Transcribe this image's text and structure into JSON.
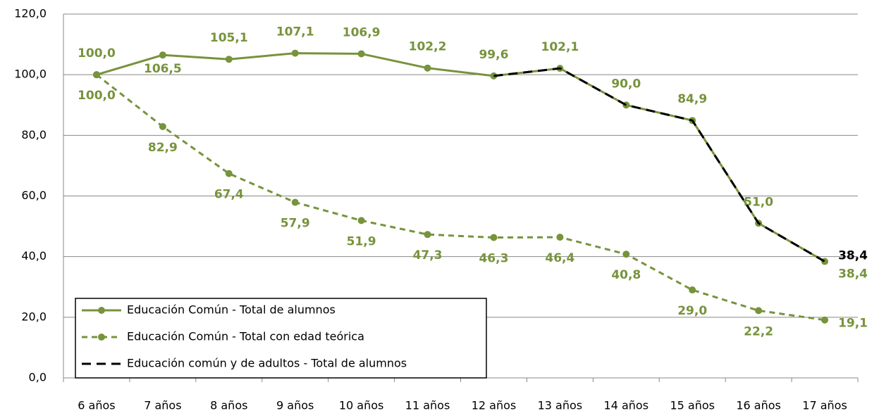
{
  "chart_data": {
    "type": "line",
    "categories": [
      "6 años",
      "7 años",
      "8 años",
      "9 años",
      "10 años",
      "11 años",
      "12 años",
      "13 años",
      "14 años",
      "15 años",
      "16 años",
      "17 años"
    ],
    "series": [
      {
        "name": "Educación Común - Total de alumnos",
        "color": "#77933c",
        "line_style": "solid",
        "marker": true,
        "values": [
          100.0,
          106.5,
          105.1,
          107.1,
          106.9,
          102.2,
          99.6,
          102.1,
          90.0,
          84.9,
          51.0,
          38.4
        ],
        "value_labels": [
          "100,0",
          "106,5",
          "105,1",
          "107,1",
          "106,9",
          "102,2",
          "99,6",
          "102,1",
          "90,0",
          "84,9",
          "51,0",
          "38,4"
        ]
      },
      {
        "name": "Educación Común - Total con edad teórica",
        "color": "#77933c",
        "line_style": "dashed",
        "marker": true,
        "values": [
          100.0,
          82.9,
          67.4,
          57.9,
          51.9,
          47.3,
          46.3,
          46.4,
          40.8,
          29.0,
          22.2,
          19.1
        ],
        "value_labels": [
          "100,0",
          "82,9",
          "67,4",
          "57,9",
          "51,9",
          "47,3",
          "46,3",
          "46,4",
          "40,8",
          "29,0",
          "22,2",
          "19,1"
        ]
      },
      {
        "name": "Educación común y de adultos - Total de alumnos",
        "color": "#000000",
        "line_style": "dashed",
        "marker": false,
        "values": [
          null,
          null,
          null,
          null,
          null,
          null,
          99.6,
          102.1,
          90.0,
          84.9,
          51.0,
          38.4
        ],
        "value_labels": [
          null,
          null,
          null,
          null,
          null,
          null,
          null,
          null,
          null,
          null,
          null,
          "38,4"
        ]
      }
    ],
    "ylim": [
      0,
      120
    ],
    "yticks": [
      {
        "value": 0,
        "label": "0,0"
      },
      {
        "value": 20,
        "label": "20,0"
      },
      {
        "value": 40,
        "label": "40,0"
      },
      {
        "value": 60,
        "label": "60,0"
      },
      {
        "value": 80,
        "label": "80,0"
      },
      {
        "value": 100,
        "label": "100,0"
      },
      {
        "value": 120,
        "label": "120,0"
      }
    ],
    "grid": true,
    "legend": "lower left"
  }
}
